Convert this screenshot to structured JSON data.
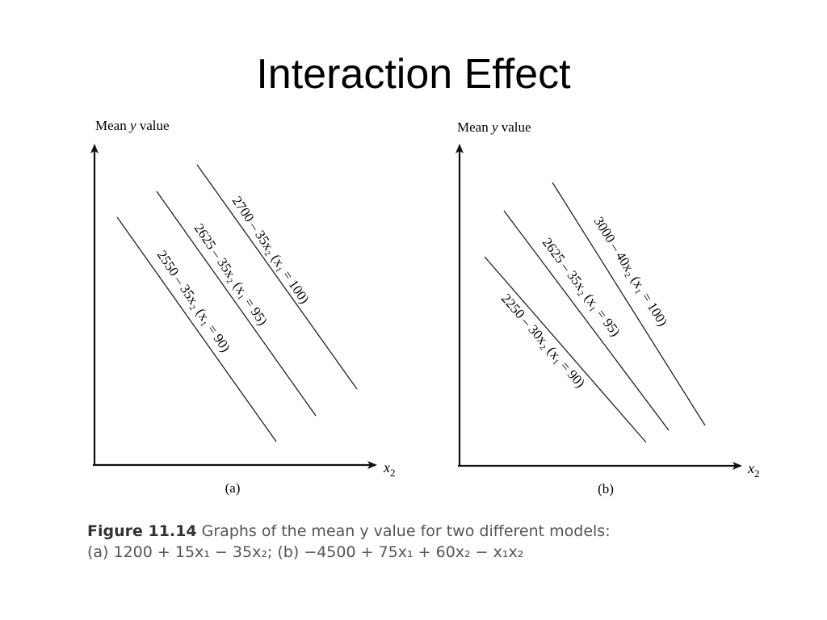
{
  "title": "Interaction Effect",
  "colors": {
    "line": "#111111",
    "text": "#000000",
    "caption": "#555555"
  },
  "panels": [
    {
      "id": "a",
      "ylabel_prefix": "Mean ",
      "ylabel_var": "y",
      "ylabel_suffix": " value",
      "xlabel": "x",
      "xlabel_sub": "2",
      "panel_label": "(a)",
      "lines": [
        {
          "label": "2700 – 35x₂ (x₁ = 100)",
          "constant": 2700,
          "slope_x2": -35,
          "x1": 100
        },
        {
          "label": "2625 – 35x₂ (x₁ = 95)",
          "constant": 2625,
          "slope_x2": -35,
          "x1": 95
        },
        {
          "label": "2550 – 35x₂ (x₁ = 90)",
          "constant": 2550,
          "slope_x2": -35,
          "x1": 90
        }
      ]
    },
    {
      "id": "b",
      "ylabel_prefix": "Mean ",
      "ylabel_var": "y",
      "ylabel_suffix": " value",
      "xlabel": "x",
      "xlabel_sub": "2",
      "panel_label": "(b)",
      "lines": [
        {
          "label": "3000 – 40x₂ (x₁ = 100)",
          "constant": 3000,
          "slope_x2": -40,
          "x1": 100
        },
        {
          "label": "2625 – 35x₂ (x₁ = 95)",
          "constant": 2625,
          "slope_x2": -35,
          "x1": 95
        },
        {
          "label": "2250 – 30x₂ (x₁ = 90)",
          "constant": 2250,
          "slope_x2": -30,
          "x1": 90
        }
      ]
    }
  ],
  "caption": {
    "figure_label": "Figure 11.14",
    "line1": "Graphs of the mean y value for two different models:",
    "line2": "(a) 1200 + 15x₁ − 35x₂; (b) −4500 + 75x₁ + 60x₂ − x₁x₂"
  }
}
